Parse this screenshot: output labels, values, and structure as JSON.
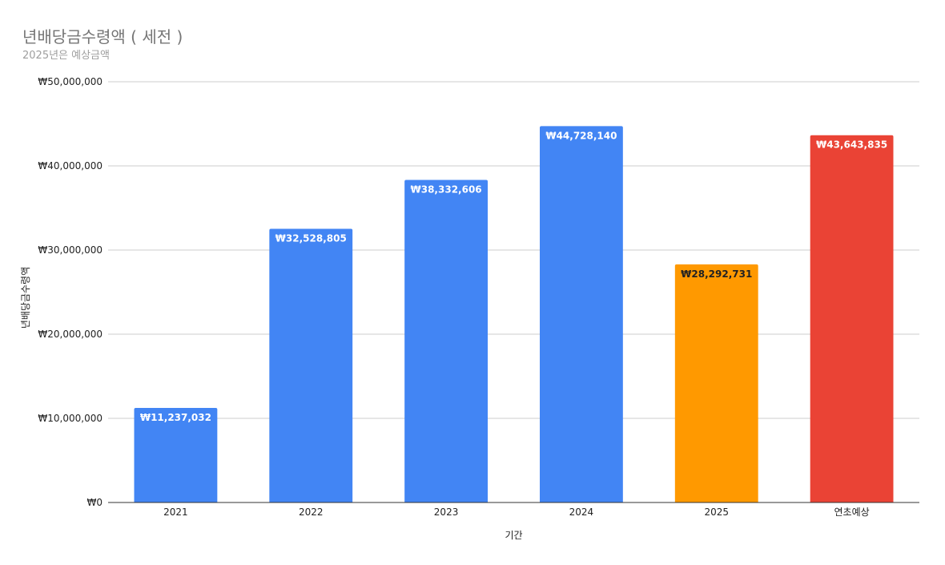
{
  "chart_data": {
    "type": "bar",
    "title": "년배당금수령액 ( 세전 )",
    "subtitle": "2025년은 예상금액",
    "xlabel": "기간",
    "ylabel": "년배당금수령액",
    "categories": [
      "2021",
      "2022",
      "2023",
      "2024",
      "2025",
      "연초예상"
    ],
    "values": [
      11237032,
      32528805,
      38332606,
      44728140,
      28292731,
      43643835
    ],
    "value_labels": [
      "₩11,237,032",
      "₩32,528,805",
      "₩38,332,606",
      "₩44,728,140",
      "₩28,292,731",
      "₩43,643,835"
    ],
    "colors": [
      "#4285f4",
      "#4285f4",
      "#4285f4",
      "#4285f4",
      "#ff9900",
      "#ea4335"
    ],
    "label_colors": [
      "#ffffff",
      "#ffffff",
      "#ffffff",
      "#ffffff",
      "#222222",
      "#ffffff"
    ],
    "ylim": [
      0,
      50000000
    ],
    "y_ticks": [
      0,
      10000000,
      20000000,
      30000000,
      40000000,
      50000000
    ],
    "y_tick_labels": [
      "₩0",
      "₩10,000,000",
      "₩20,000,000",
      "₩30,000,000",
      "₩40,000,000",
      "₩50,000,000"
    ],
    "grid": true,
    "legend": "none",
    "gridline_color": "#cccccc",
    "axis_color": "#333333"
  }
}
